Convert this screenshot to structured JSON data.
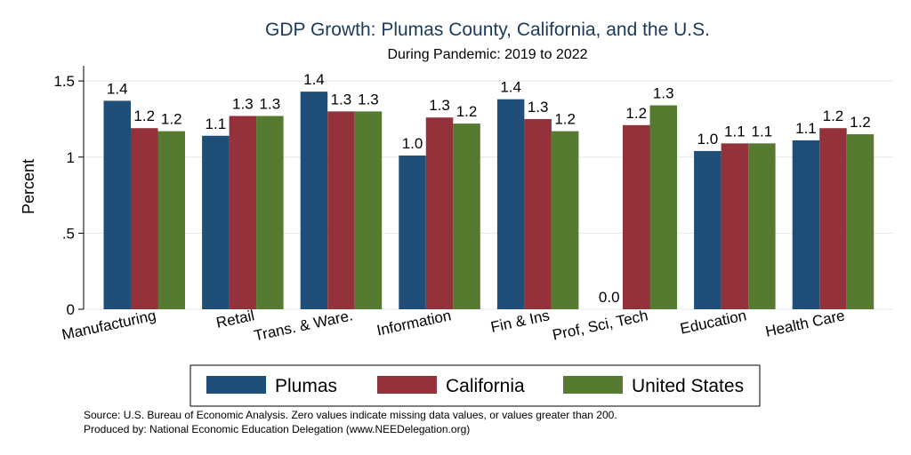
{
  "chart_data": {
    "type": "bar",
    "title": "GDP Growth: Plumas County, California, and the U.S.",
    "subtitle": "During Pandemic: 2019 to 2022",
    "ylabel": "Percent",
    "xlabel": "",
    "ylim": [
      0,
      1.6
    ],
    "yticks": [
      {
        "value": 0,
        "label": "0"
      },
      {
        "value": 0.5,
        "label": ".5"
      },
      {
        "value": 1,
        "label": "1"
      },
      {
        "value": 1.5,
        "label": "1.5"
      }
    ],
    "grid": true,
    "legend_position": "bottom",
    "categories": [
      "Manufacturing",
      "Retail",
      "Trans. & Ware.",
      "Information",
      "Fin & Ins",
      "Prof, Sci, Tech",
      "Education",
      "Health Care"
    ],
    "series": [
      {
        "name": "Plumas",
        "color": "#1f4e79",
        "values": [
          1.37,
          1.14,
          1.43,
          1.01,
          1.38,
          0.0,
          1.04,
          1.11
        ],
        "labels": [
          "1.4",
          "1.1",
          "1.4",
          "1.0",
          "1.4",
          "0.0",
          "1.0",
          "1.1"
        ]
      },
      {
        "name": "California",
        "color": "#94323b",
        "values": [
          1.19,
          1.27,
          1.3,
          1.26,
          1.25,
          1.21,
          1.09,
          1.19
        ],
        "labels": [
          "1.2",
          "1.3",
          "1.3",
          "1.3",
          "1.3",
          "1.2",
          "1.1",
          "1.2"
        ]
      },
      {
        "name": "United States",
        "color": "#557a30",
        "values": [
          1.17,
          1.27,
          1.3,
          1.22,
          1.17,
          1.34,
          1.09,
          1.15
        ],
        "labels": [
          "1.2",
          "1.3",
          "1.3",
          "1.2",
          "1.2",
          "1.3",
          "1.1",
          "1.2"
        ]
      }
    ],
    "source_lines": [
      "Source: U.S. Bureau of Economic Analysis. Zero values indicate missing data values, or values greater than 200.",
      "Produced by: National Economic Education Delegation (www.NEEDelegation.org)"
    ]
  }
}
